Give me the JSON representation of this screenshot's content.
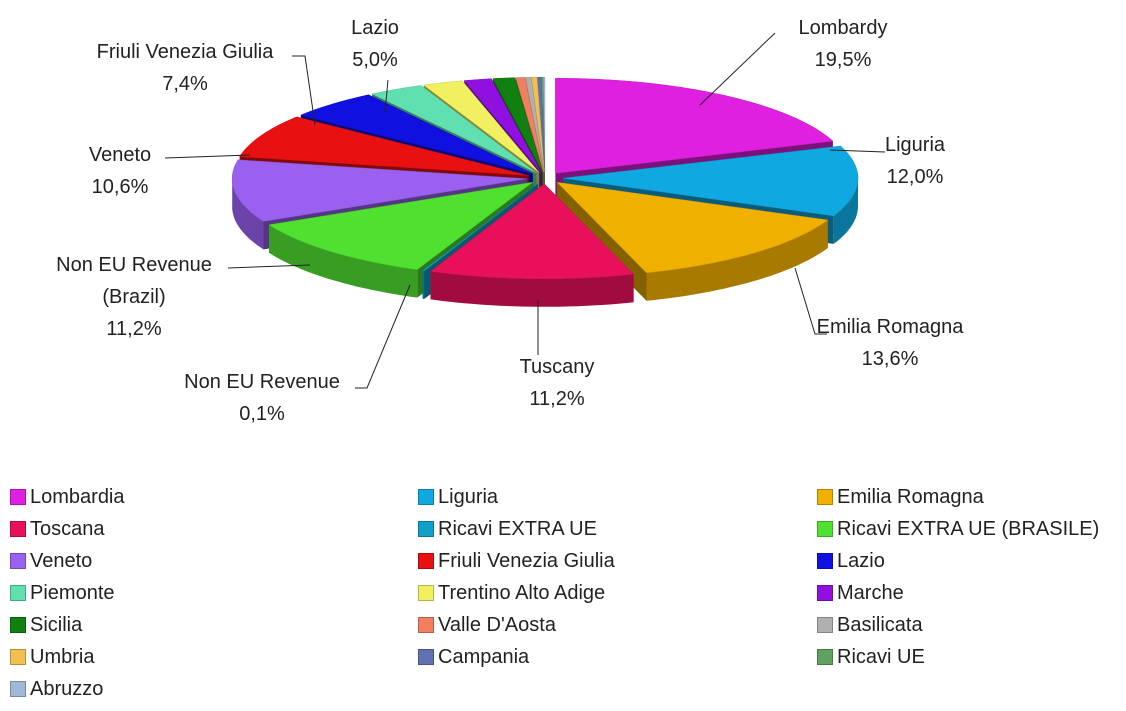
{
  "chart_data": {
    "type": "pie",
    "categories": [
      "Lombardia",
      "Liguria",
      "Emilia Romagna",
      "Toscana",
      "Ricavi EXTRA UE",
      "Ricavi EXTRA UE (BRASILE)",
      "Veneto",
      "Friuli Venezia Giulia",
      "Lazio",
      "Piemonte",
      "Trentino Alto Adige",
      "Marche",
      "Sicilia",
      "Valle D'Aosta",
      "Basilicata",
      "Umbria",
      "Campania",
      "Ricavi UE",
      "Abruzzo"
    ],
    "slice_labels": [
      "Lombardy",
      "Liguria",
      "Emilia Romagna",
      "Tuscany",
      "Non EU Revenue",
      "Non EU Revenue (Brazil)",
      "Veneto",
      "Friuli Venezia Giulia",
      "Lazio",
      null,
      null,
      null,
      null,
      null,
      null,
      null,
      null,
      null,
      null
    ],
    "values": [
      19.5,
      12.0,
      13.6,
      11.2,
      0.1,
      11.2,
      10.6,
      7.4,
      5.0,
      3.0,
      2.2,
      1.5,
      1.2,
      0.5,
      0.3,
      0.3,
      0.2,
      0.1,
      0.1
    ],
    "value_labels": [
      "19,5%",
      "12,0%",
      "13,6%",
      "11,2%",
      "0,1%",
      "11,2%",
      "10,6%",
      "7,4%",
      "5,0%",
      null,
      null,
      null,
      null,
      null,
      null,
      null,
      null,
      null,
      null
    ],
    "colors": [
      "#e020e0",
      "#10a8e0",
      "#f0b000",
      "#e8105a",
      "#10a0c8",
      "#50e030",
      "#9a60f0",
      "#e81010",
      "#1010e0",
      "#60e0b0",
      "#f0f060",
      "#9010e0",
      "#108010",
      "#f08060",
      "#b0b0b0",
      "#f0c050",
      "#6070b0",
      "#60a060",
      "#a0b8d8"
    ],
    "legend": "bottom"
  }
}
